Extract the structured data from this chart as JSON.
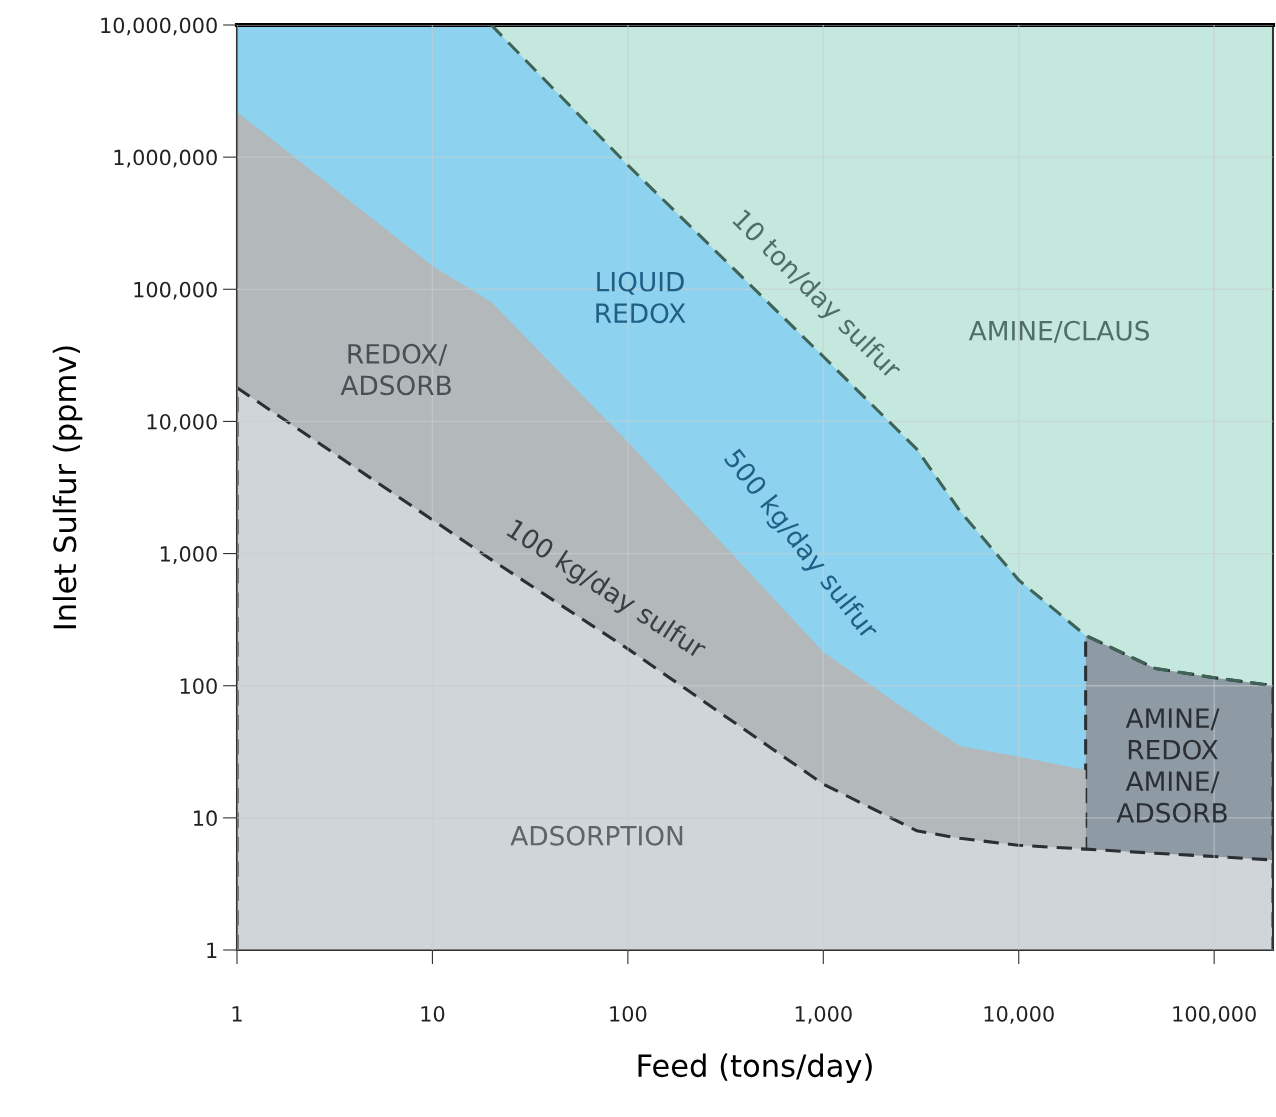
{
  "chart_data": {
    "type": "area",
    "xlabel": "Feed (tons/day)",
    "ylabel": "Inlet Sulfur (ppmv)",
    "log": "xy",
    "grid": true,
    "xlim": [
      1,
      200000
    ],
    "ylim": [
      1,
      10000000
    ],
    "xticks": [
      1,
      10,
      100,
      {
        "value": 1000,
        "label": "1,000"
      },
      {
        "value": 10000,
        "label": "10,000"
      },
      {
        "value": 100000,
        "label": "100,000"
      }
    ],
    "yticks": [
      1,
      10,
      100,
      {
        "value": 1000,
        "label": "1,000"
      },
      {
        "value": 10000,
        "label": "10,000"
      },
      {
        "value": 100000,
        "label": "100,000"
      },
      {
        "value": 1000000,
        "label": "1,000,000"
      },
      {
        "value": 10000000,
        "label": "10,000,000"
      }
    ],
    "series": [
      {
        "color": "#c5e8de",
        "x": [
          20,
          200000
        ],
        "values": [
          10000000,
          10000000
        ]
      },
      {
        "color": "#8dd3ef",
        "x": [
          1,
          10,
          20,
          100,
          1000,
          3000,
          5000,
          10000,
          22000
        ],
        "values": [
          10000000,
          10000000,
          10000000,
          870000,
          31000,
          6200,
          2100,
          630,
          240
        ]
      },
      {
        "color": "#8e9aa4",
        "line_style": "dashed",
        "x": [
          22000,
          50000,
          100000,
          200000
        ],
        "values": [
          240,
          135,
          115,
          100
        ]
      },
      {
        "color": "#b3b8bb",
        "x": [
          1,
          10,
          20,
          100,
          1000,
          3000,
          5000,
          10000,
          22000
        ],
        "values": [
          2200000,
          150000,
          80000,
          7000,
          180,
          58,
          35,
          29,
          23
        ]
      },
      {
        "color": "#d0d5d9",
        "line_style": "dashed",
        "x": [
          1,
          10,
          20,
          100,
          1000,
          3000,
          5000,
          10000,
          22000,
          50000,
          100000,
          200000
        ],
        "values": [
          18000,
          1800,
          900,
          190,
          18,
          8,
          7,
          6.2,
          5.8,
          5.4,
          5.1,
          4.8
        ]
      },
      {
        "type": "line",
        "color": "#3f6357",
        "line_style": "dashed",
        "x": [
          20,
          100,
          1000,
          3000,
          5000,
          10000,
          22000,
          50000,
          100000,
          200000
        ],
        "values": [
          10000000,
          870000,
          31000,
          6200,
          2100,
          630,
          240,
          135,
          115,
          100
        ]
      }
    ],
    "annotations": [
      "LIQUID\nREDOX",
      "REDOX/\nADSORB",
      "AMINE/CLAUS",
      "ADSORPTION",
      "AMINE/\nREDOX\nAMINE/\nADSORB",
      "10 ton/day sulfur",
      "500 kg/day sulfur",
      "100 kg/day sulfur"
    ]
  }
}
